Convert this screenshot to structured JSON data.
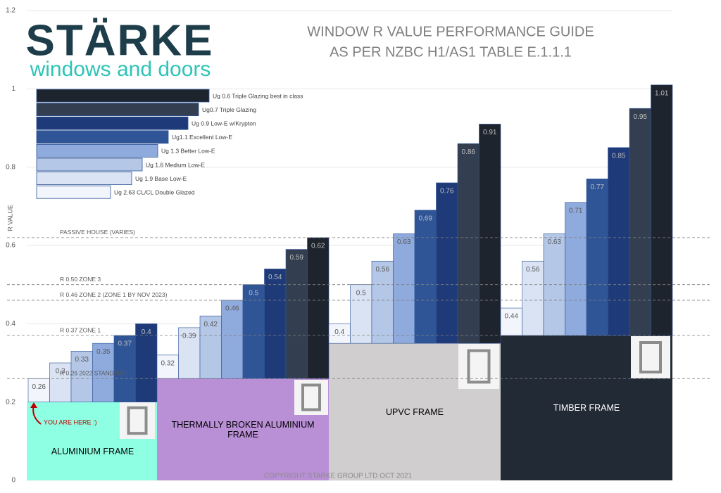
{
  "logo": {
    "brand": "STÄRKE",
    "tagline": "windows and doors"
  },
  "chart_data": {
    "type": "bar",
    "title": "WINDOW R VALUE PERFORMANCE GUIDE",
    "subtitle": "AS PER NZBC H1/AS1 TABLE E.1.1.1",
    "y_axis_label": "R VALUE",
    "ylim": [
      0,
      1.2
    ],
    "yticks": [
      0,
      0.2,
      0.4,
      0.6,
      0.8,
      1,
      1.2
    ],
    "grid": true,
    "categories": [
      "ALUMINIUM FRAME",
      "THERMALLY BROKEN ALUMINIUM FRAME",
      "UPVC FRAME",
      "TIMBER FRAME"
    ],
    "frame_values": [
      0.2,
      0.26,
      0.35,
      0.37
    ],
    "frame_colors": [
      "#8fffe3",
      "#b98fd6",
      "#d0cece",
      "#222a35"
    ],
    "frame_text_colors": [
      "#000000",
      "#000000",
      "#000000",
      "#ffffff"
    ],
    "series": [
      {
        "name": "Ug 2.63  CL/CL Double Glazed",
        "color": "#f2f5fb",
        "values": [
          0.26,
          0.32,
          0.4,
          0.44
        ]
      },
      {
        "name": "Ug 1.9 Base Low-E",
        "color": "#dae3f3",
        "values": [
          0.3,
          0.39,
          0.5,
          0.56
        ]
      },
      {
        "name": "Ug 1.6 Medium Low-E",
        "color": "#b4c7e7",
        "values": [
          0.33,
          0.42,
          0.56,
          0.63
        ]
      },
      {
        "name": "Ug 1.3 Better Low-E",
        "color": "#8faadc",
        "values": [
          0.35,
          0.46,
          0.63,
          0.71
        ]
      },
      {
        "name": "Ug1.1 Excellent Low-E",
        "color": "#2f5597",
        "values": [
          0.37,
          0.5,
          0.69,
          0.77
        ]
      },
      {
        "name": "Ug 0.9 Low-E w/Krypton",
        "color": "#1f3a78",
        "values": [
          0.4,
          0.54,
          0.76,
          0.85
        ]
      },
      {
        "name": "Ug0.7 Triple Glazing",
        "color": "#333f50",
        "values": [
          null,
          0.59,
          0.86,
          0.95
        ]
      },
      {
        "name": "Ug 0.6 Triple Glazing best in class",
        "color": "#1e242d",
        "values": [
          null,
          0.62,
          0.91,
          1.01
        ]
      }
    ],
    "reference_lines": [
      {
        "label": "PASSIVE HOUSE (VARIES)",
        "value": 0.62
      },
      {
        "label": "R 0.50 ZONE 3",
        "value": 0.5
      },
      {
        "label": "R 0.46 ZONE 2 (ZONE 1 BY NOV 2023)",
        "value": 0.46
      },
      {
        "label": "R 0.37 ZONE 1",
        "value": 0.37
      },
      {
        "label": "R 0.26 2022 STANDARD",
        "value": 0.26
      }
    ],
    "annotation": "YOU ARE HERE :)",
    "copyright": "COPYRIGHT STARKE GROUP LTD OCT 2021"
  }
}
